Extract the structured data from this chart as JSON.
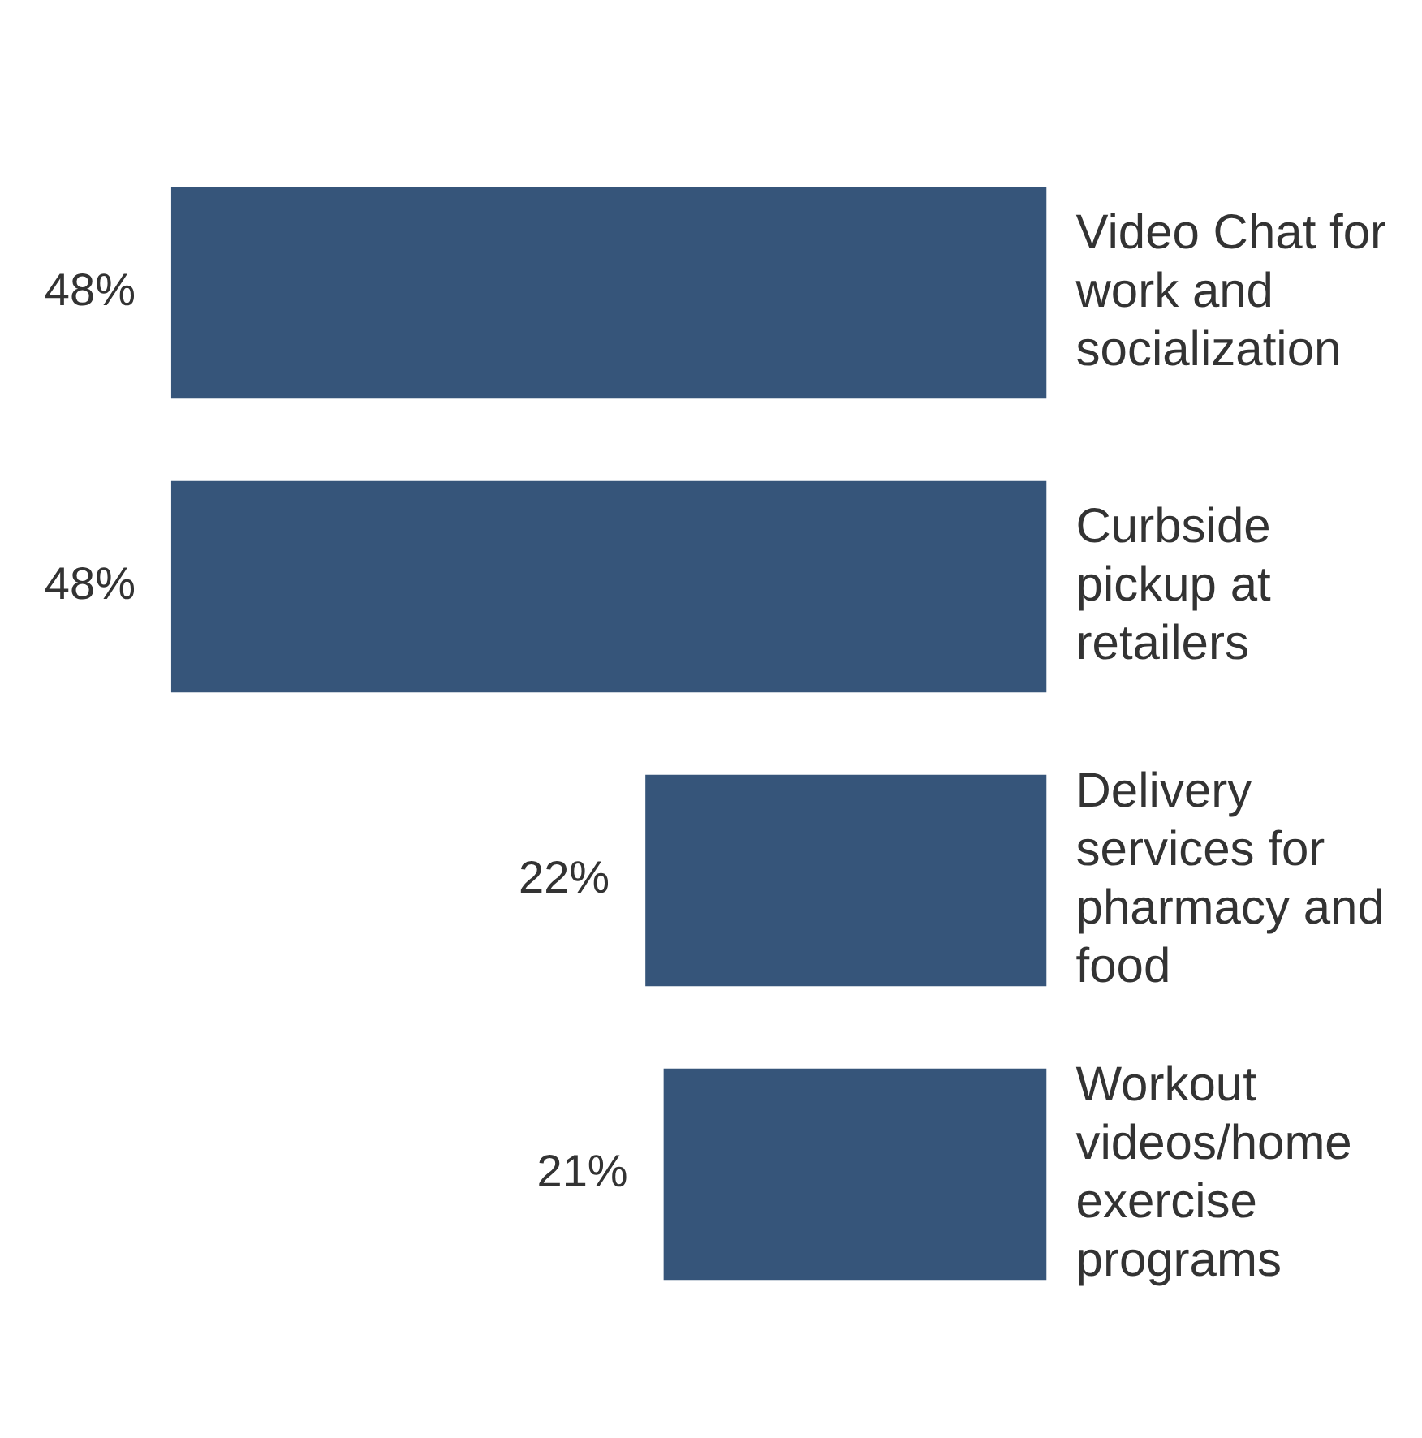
{
  "chart_data": {
    "type": "bar",
    "orientation": "horizontal",
    "categories": [
      "Video Chat for work and socialization",
      "Curbside pickup at retailers",
      "Delivery services for pharmacy and food",
      "Workout videos/home exercise programs"
    ],
    "values": [
      48,
      48,
      22,
      21
    ],
    "value_labels": [
      "48%",
      "48%",
      "22%",
      "21%"
    ],
    "color": "#36557a",
    "grid": false,
    "legend": false,
    "tick_labels": "y"
  }
}
